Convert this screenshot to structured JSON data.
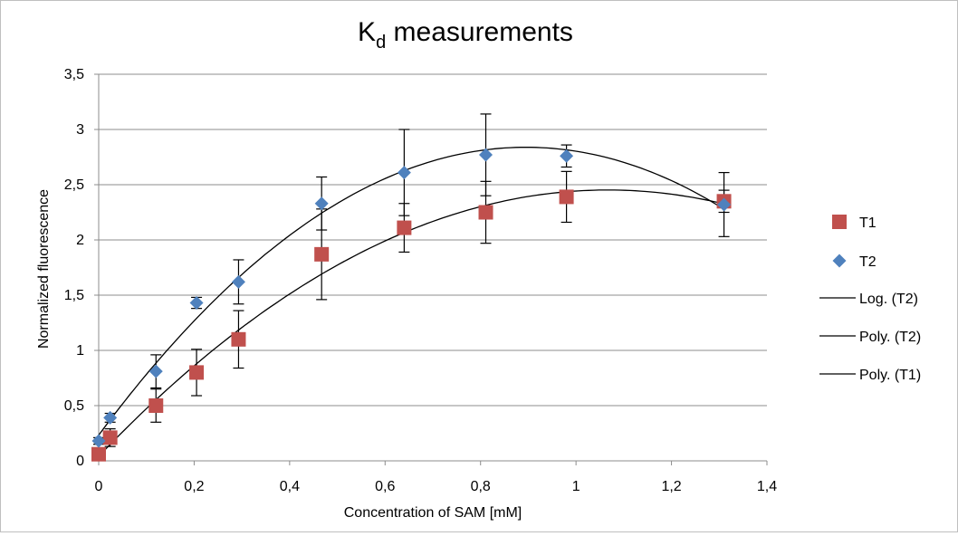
{
  "chart_data": {
    "type": "scatter",
    "title": {
      "main": "K",
      "subscript": "d",
      "rest": " measurements"
    },
    "xlabel": "Concentration of SAM [mM]",
    "ylabel": "Normalized fluorescence",
    "xlim": [
      0,
      1.4
    ],
    "ylim": [
      0,
      3.5
    ],
    "x_ticks": [
      "0",
      "0,2",
      "0,4",
      "0,6",
      "0,8",
      "1",
      "1,2",
      "1,4"
    ],
    "y_ticks": [
      "0",
      "0,5",
      "1",
      "1,5",
      "2",
      "2,5",
      "3",
      "3,5"
    ],
    "grid": true,
    "legend_position": "right",
    "series": [
      {
        "name": "T1",
        "marker": "square",
        "color": "#c0504d",
        "x": [
          0.0,
          0.024,
          0.12,
          0.205,
          0.293,
          0.467,
          0.64,
          0.811,
          0.98,
          1.31
        ],
        "y": [
          0.06,
          0.21,
          0.5,
          0.8,
          1.1,
          1.87,
          2.11,
          2.25,
          2.39,
          2.35
        ],
        "err": [
          0.04,
          0.08,
          0.15,
          0.21,
          0.26,
          0.41,
          0.22,
          0.28,
          0.23,
          0.1
        ]
      },
      {
        "name": "T2",
        "marker": "diamond",
        "color": "#4f81bd",
        "x": [
          0.0,
          0.024,
          0.12,
          0.205,
          0.293,
          0.467,
          0.64,
          0.811,
          0.98,
          1.31
        ],
        "y": [
          0.18,
          0.39,
          0.81,
          1.43,
          1.62,
          2.33,
          2.61,
          2.77,
          2.76,
          2.32
        ],
        "err": [
          0.03,
          0.04,
          0.15,
          0.05,
          0.2,
          0.24,
          0.39,
          0.37,
          0.1,
          0.29
        ]
      }
    ],
    "trendlines": [
      {
        "name": "Log. (T2)",
        "type": "logarithmic",
        "of": "T2"
      },
      {
        "name": "Poly. (T2)",
        "type": "polynomial",
        "of": "T2"
      },
      {
        "name": "Poly. (T1)",
        "type": "polynomial",
        "of": "T1"
      }
    ]
  }
}
